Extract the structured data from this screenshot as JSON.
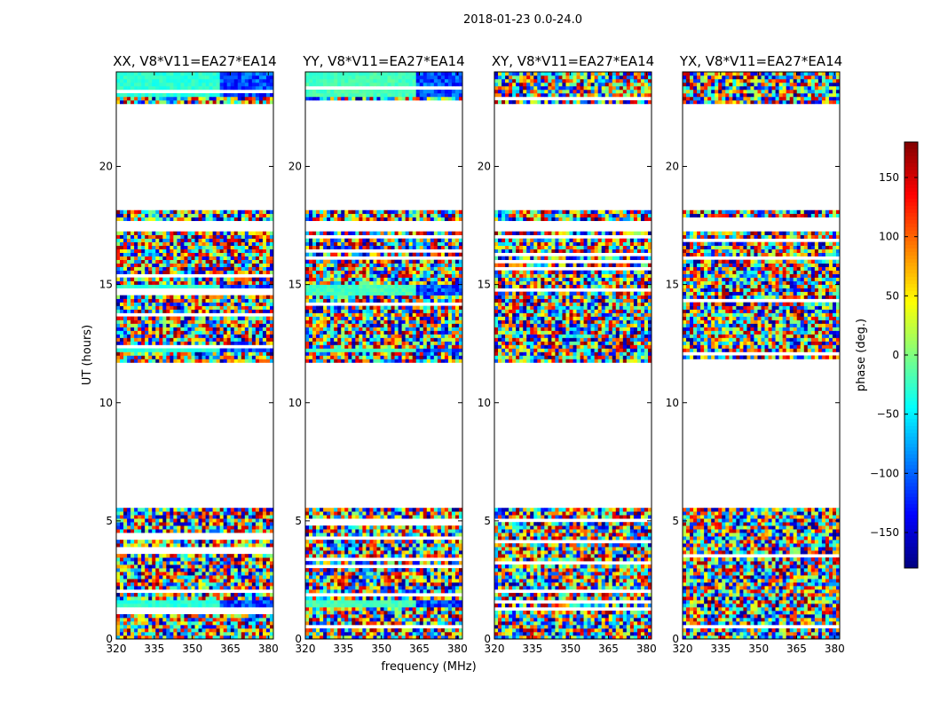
{
  "chart_data": {
    "type": "heatmap",
    "suptitle": "2018-01-23 0.0-24.0",
    "xlabel": "frequency (MHz)",
    "ylabel": "UT (hours)",
    "xlim": [
      320,
      382
    ],
    "ylim": [
      0,
      24
    ],
    "xticks": [
      320,
      335,
      350,
      365,
      380
    ],
    "yticks": [
      0,
      5,
      10,
      15,
      20
    ],
    "colorbar": {
      "label": "phase (deg.)",
      "range": [
        -180,
        180
      ],
      "ticks": [
        150,
        100,
        50,
        0,
        -50,
        -100,
        -150
      ],
      "tick_labels": [
        "150",
        "100",
        "50",
        "0",
        "−50",
        "−100",
        "−150"
      ],
      "colormap": "jet"
    },
    "panels": [
      {
        "title": "XX, V8*V11=EA27*EA14",
        "coherent_phase_deg": -30,
        "coherent_upto_mhz": 361
      },
      {
        "title": "YY, V8*V11=EA27*EA14",
        "coherent_phase_deg": -20,
        "coherent_upto_mhz": 363
      },
      {
        "title": "XY, V8*V11=EA27*EA14",
        "coherent_phase_deg": null,
        "coherent_upto_mhz": null
      },
      {
        "title": "YX, V8*V11=EA27*EA14",
        "coherent_phase_deg": null,
        "coherent_upto_mhz": null
      }
    ],
    "data_present_hours": [
      [
        0,
        5.6
      ],
      [
        11.7,
        17.2
      ],
      [
        17.7,
        18.2
      ],
      [
        22.7,
        24
      ]
    ],
    "coherent_hours": [
      [
        14.5,
        15.0
      ],
      [
        12.1,
        12.3
      ],
      [
        1.3,
        1.7
      ],
      [
        22.9,
        24
      ]
    ]
  }
}
